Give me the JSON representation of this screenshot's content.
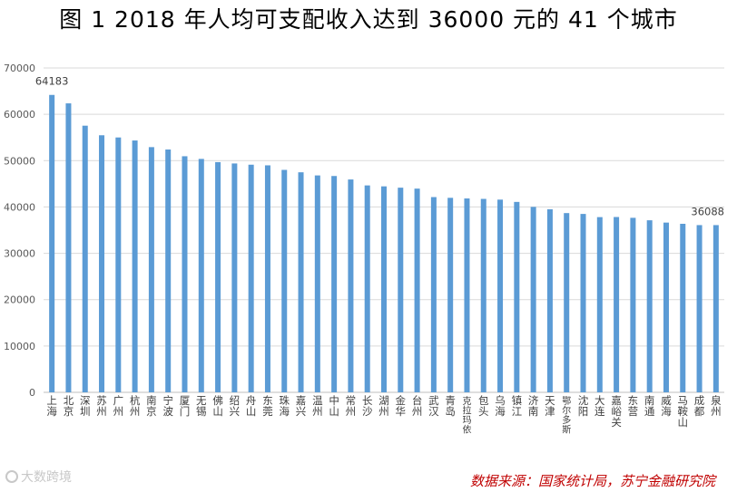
{
  "page_title": "图 1   2018 年人均可支配收入达到 36000 元的 41 个城市",
  "source": "数据来源：国家统计局，苏宁金融研究院",
  "watermark": "大数跨境",
  "colors": {
    "bar": "#5b9bd5",
    "grid": "#d9d9d9",
    "axis": "#bfbfbf",
    "source": "#c00000"
  },
  "chart_data": {
    "type": "bar",
    "title": "",
    "xlabel": "",
    "ylabel": "",
    "ylim": [
      0,
      70000
    ],
    "yticks": [
      0,
      10000,
      20000,
      30000,
      40000,
      50000,
      60000,
      70000
    ],
    "grid": true,
    "categories": [
      "上海",
      "北京",
      "深圳",
      "苏州",
      "广州",
      "杭州",
      "南京",
      "宁波",
      "厦门",
      "无锡",
      "佛山",
      "绍兴",
      "舟山",
      "东莞",
      "珠海",
      "嘉兴",
      "温州",
      "中山",
      "常州",
      "长沙",
      "湖州",
      "金华",
      "台州",
      "武汉",
      "青岛",
      "克拉玛依",
      "包头",
      "乌海",
      "镇江",
      "济南",
      "天津",
      "鄂尔多斯",
      "沈阳",
      "大连",
      "嘉峪关",
      "东营",
      "南通",
      "威海",
      "马鞍山",
      "成都",
      "泉州"
    ],
    "values": [
      64183,
      62361,
      57543,
      55476,
      55000,
      54348,
      52916,
      52402,
      50948,
      50373,
      49679,
      49389,
      49125,
      48986,
      48004,
      47484,
      46808,
      46685,
      45933,
      44651,
      44449,
      44163,
      43962,
      42133,
      41975,
      41840,
      41744,
      41587,
      41091,
      40014,
      39506,
      38682,
      38498,
      37811,
      37834,
      37660,
      37129,
      36632,
      36370,
      36088,
      36088
    ],
    "data_labels": [
      {
        "index": 0,
        "text": "64183"
      },
      {
        "index": 40,
        "text": "36088"
      }
    ]
  }
}
